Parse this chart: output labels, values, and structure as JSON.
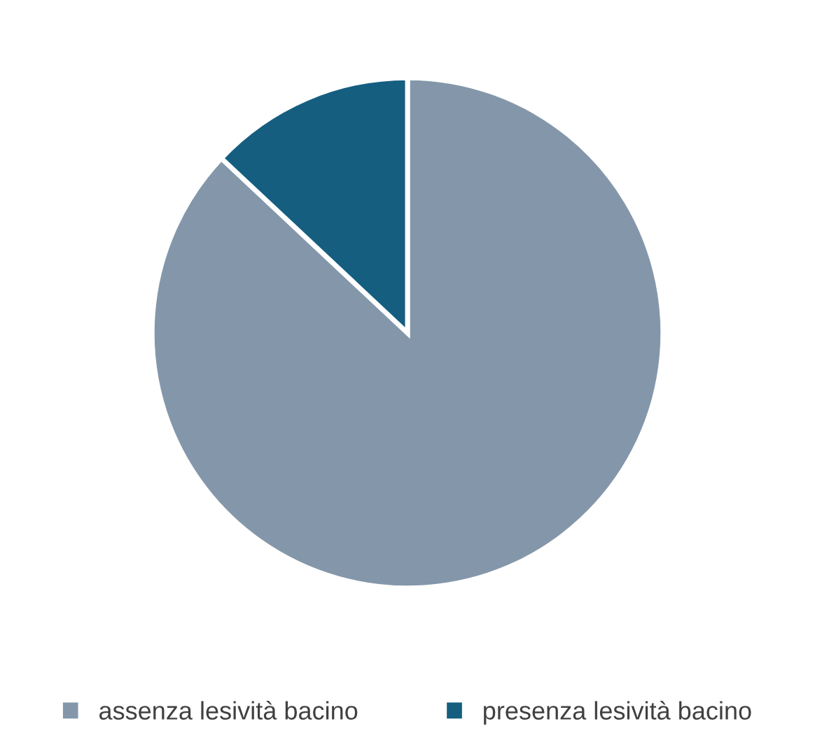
{
  "chart_data": {
    "type": "pie",
    "categories": [
      "assenza lesività bacino",
      "presenza lesività bacino"
    ],
    "values": [
      87,
      13
    ],
    "colors": [
      "#8497aa",
      "#155e80"
    ],
    "legend": "bottom"
  }
}
